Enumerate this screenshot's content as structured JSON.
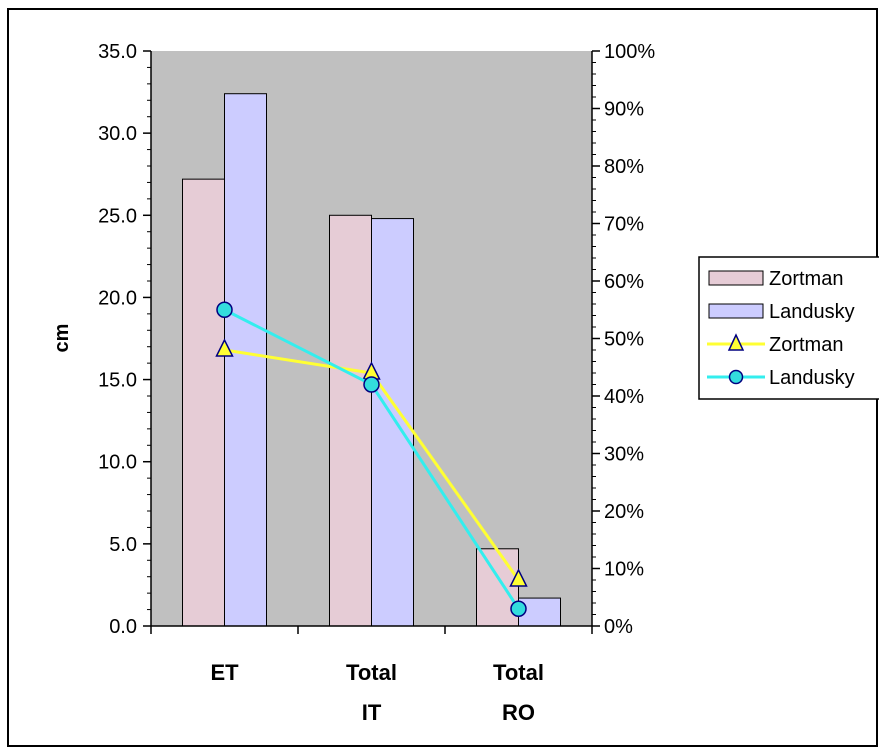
{
  "chart_data": {
    "type": "bar",
    "categories": [
      [
        "ET"
      ],
      [
        "Total",
        "IT"
      ],
      [
        "Total",
        "RO"
      ]
    ],
    "ylabel": "cm",
    "y_left": {
      "ylim": [
        0,
        35
      ],
      "ticks": [
        0,
        5,
        10,
        15,
        20,
        25,
        30,
        35
      ],
      "tick_labels": [
        "0.0",
        "5.0",
        "10.0",
        "15.0",
        "20.0",
        "25.0",
        "30.0",
        "35.0"
      ]
    },
    "y_right": {
      "ylim": [
        0,
        100
      ],
      "ticks": [
        0,
        10,
        20,
        30,
        40,
        50,
        60,
        70,
        80,
        90,
        100
      ],
      "tick_labels": [
        "0%",
        "10%",
        "20%",
        "30%",
        "40%",
        "50%",
        "60%",
        "70%",
        "80%",
        "90%",
        "100%"
      ]
    },
    "series": [
      {
        "name": "Zortman",
        "kind": "bar",
        "axis": "left",
        "values": [
          27.2,
          25.0,
          4.7
        ],
        "color": "#e6ccd6"
      },
      {
        "name": "Landusky",
        "kind": "bar",
        "axis": "left",
        "values": [
          32.4,
          24.8,
          1.7
        ],
        "color": "#ccccff"
      },
      {
        "name": "Zortman",
        "kind": "line",
        "axis": "right",
        "marker": "triangle",
        "values": [
          48,
          44,
          8
        ],
        "color": "#ffff33",
        "marker_fill": "#ffff33"
      },
      {
        "name": "Landusky",
        "kind": "line",
        "axis": "right",
        "marker": "circle",
        "values": [
          55,
          42,
          3
        ],
        "color": "#33eeee",
        "marker_fill": "#33dddd"
      }
    ],
    "plot_background": "#c0c0c0",
    "grid": false,
    "legend_position": "right"
  }
}
